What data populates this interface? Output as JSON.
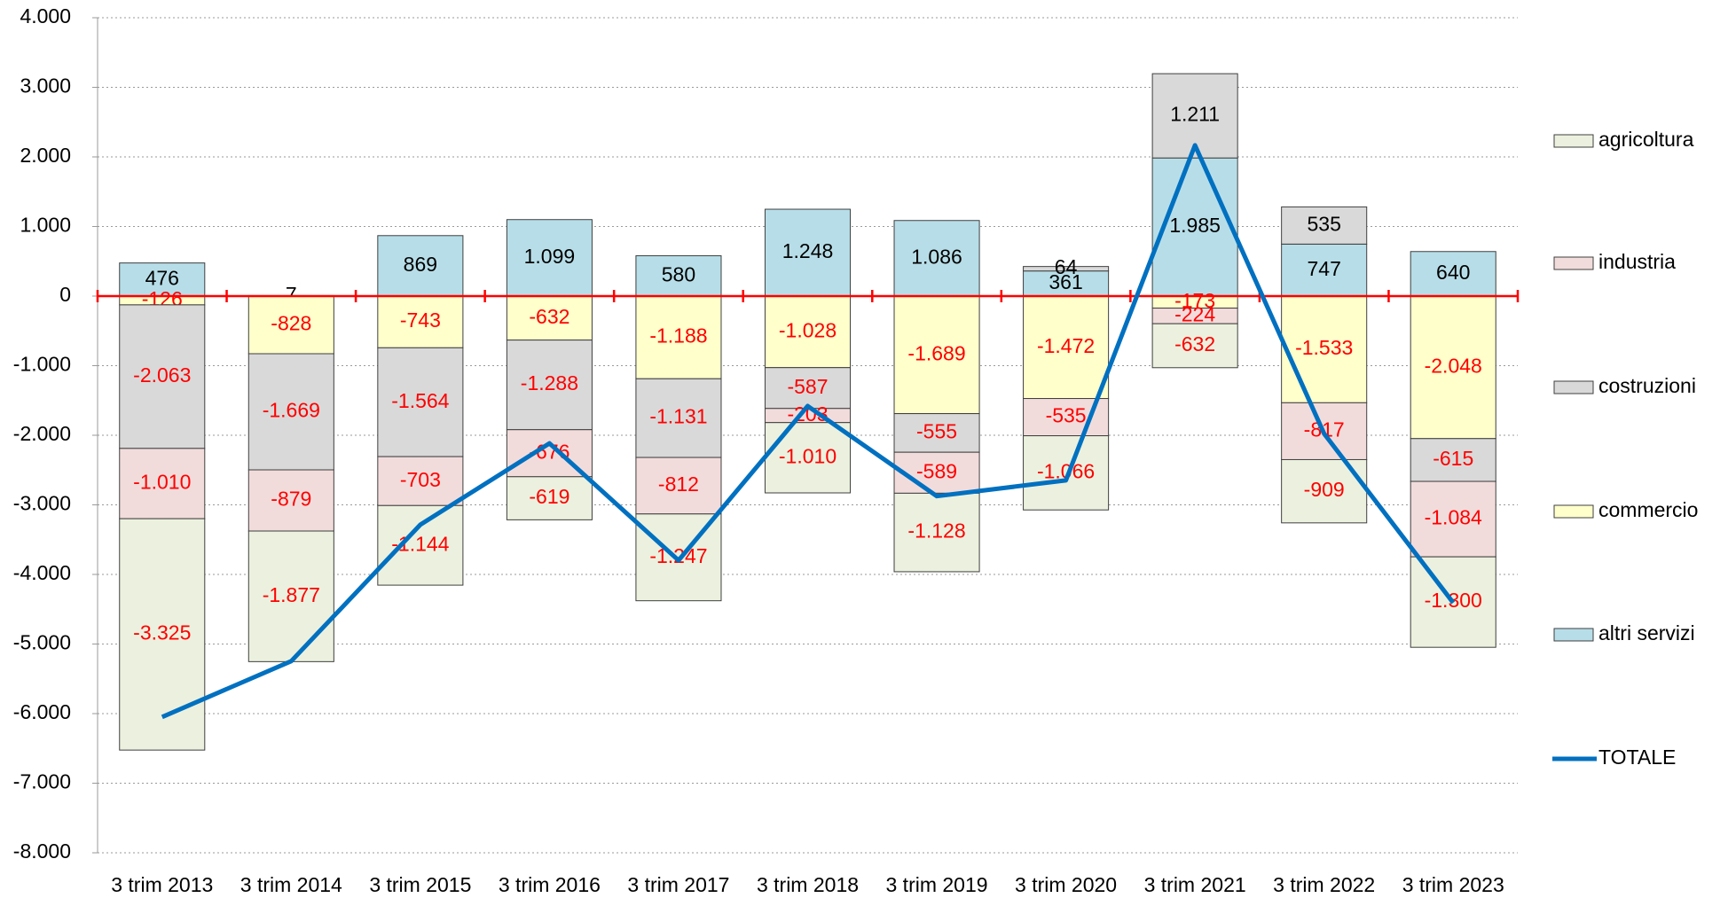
{
  "chart_data": {
    "type": "bar",
    "stacked": true,
    "categories": [
      "3 trim 2013",
      "3 trim 2014",
      "3 trim 2015",
      "3 trim 2016",
      "3 trim 2017",
      "3 trim 2018",
      "3 trim 2019",
      "3 trim 2020",
      "3 trim 2021",
      "3 trim 2022",
      "3 trim 2023"
    ],
    "series": [
      {
        "name": "agricoltura",
        "color": "#ebf1de",
        "values": [
          -3325,
          -1877,
          -1144,
          -619,
          -1247,
          -1010,
          -1128,
          -1066,
          -632,
          -909,
          -1300
        ],
        "value_labels": [
          "-3.325",
          "-1.877",
          "-1.144",
          "-619",
          "-1.247",
          "-1.010",
          "-1.128",
          "-1.066",
          "-632",
          "-909",
          "-1.300"
        ]
      },
      {
        "name": "industria",
        "color": "#f2dcdb",
        "values": [
          -1010,
          -879,
          -703,
          -676,
          -812,
          -203,
          -589,
          -535,
          -224,
          -817,
          -1084
        ],
        "value_labels": [
          "-1.010",
          "-879",
          "-703",
          "-676",
          "-812",
          "-203",
          "-589",
          "-535",
          "-224",
          "-817",
          "-1.084"
        ]
      },
      {
        "name": "costruzioni",
        "color": "#d9d9d9",
        "values": [
          -2063,
          -1669,
          -1564,
          -1288,
          -1131,
          -587,
          -555,
          64,
          1211,
          535,
          -615
        ],
        "value_labels": [
          "-2.063",
          "-1.669",
          "-1.564",
          "-1.288",
          "-1.131",
          "-587",
          "-555",
          "64",
          "1.211",
          "535",
          "-615"
        ]
      },
      {
        "name": "commercio",
        "color": "#ffffcc",
        "values": [
          -126,
          -828,
          -743,
          -632,
          -1188,
          -1028,
          -1689,
          -1472,
          -173,
          -1533,
          -2048
        ],
        "value_labels": [
          "-126",
          "-828",
          "-743",
          "-632",
          "-1.188",
          "-1.028",
          "-1.689",
          "-1.472",
          "-173",
          "-1.533",
          "-2.048"
        ]
      },
      {
        "name": "altri servizi",
        "color": "#b7dee8",
        "values": [
          476,
          7,
          869,
          1099,
          580,
          1248,
          1086,
          361,
          1985,
          747,
          640
        ],
        "value_labels": [
          "476",
          "7",
          "869",
          "1.099",
          "580",
          "1.248",
          "1.086",
          "361",
          "1.985",
          "747",
          "640"
        ]
      },
      {
        "name": "TOTALE",
        "type": "line",
        "color": "#0070c0",
        "values": [
          -6048,
          -5246,
          -3285,
          -2116,
          -3798,
          -1580,
          -2875,
          -2648,
          2167,
          -1977,
          -4407
        ]
      }
    ],
    "ylim": [
      -8000,
      4000
    ],
    "yticks": [
      {
        "value": -8000,
        "label": "-8.000"
      },
      {
        "value": -7000,
        "label": "-7.000"
      },
      {
        "value": -6000,
        "label": "-6.000"
      },
      {
        "value": -5000,
        "label": "-5.000"
      },
      {
        "value": -4000,
        "label": "-4.000"
      },
      {
        "value": -3000,
        "label": "-3.000"
      },
      {
        "value": -2000,
        "label": "-2.000"
      },
      {
        "value": -1000,
        "label": "-1.000"
      },
      0,
      {
        "value": 1000,
        "label": "1.000"
      },
      {
        "value": 2000,
        "label": "2.000"
      },
      {
        "value": 3000,
        "label": "3.000"
      },
      {
        "value": 4000,
        "label": "4.000"
      }
    ],
    "grid": true,
    "legend": "right",
    "zero_line_color": "#ff0000",
    "positive_label_color": "#000000",
    "negative_label_color": "#ff0000"
  }
}
